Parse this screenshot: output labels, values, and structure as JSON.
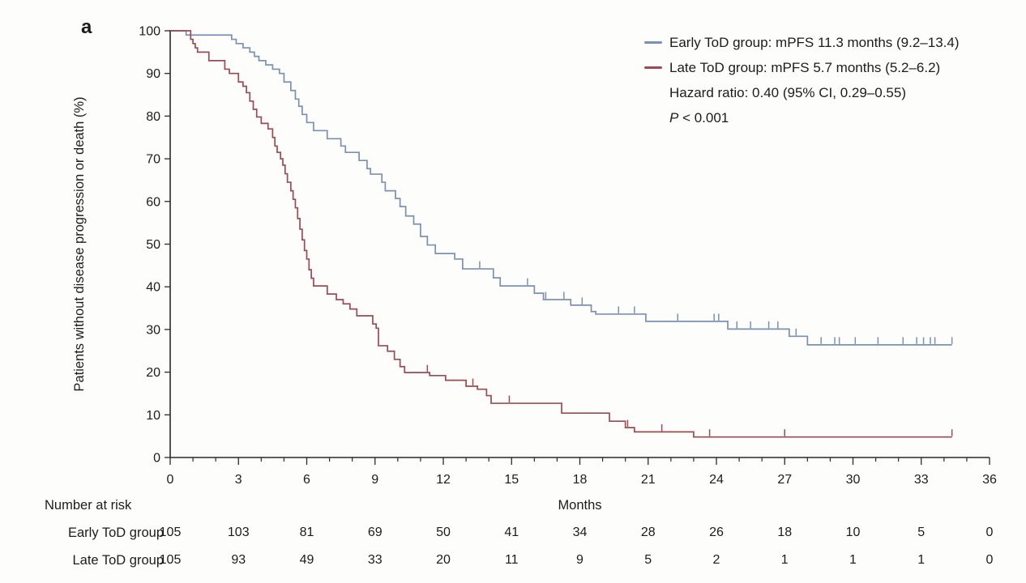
{
  "figure": {
    "panel_label": "a",
    "background": "#fdfdfb"
  },
  "chart_data": {
    "type": "line",
    "subtype": "kaplan-meier-step",
    "title": "",
    "xlabel": "Months",
    "ylabel": "Patients without disease progression or death (%)",
    "xlim": [
      0,
      36
    ],
    "ylim": [
      0,
      100
    ],
    "x_major_ticks": [
      0,
      3,
      6,
      9,
      12,
      15,
      18,
      21,
      24,
      27,
      30,
      33,
      36
    ],
    "x_minor_tick_every": 1,
    "y_ticks": [
      0,
      10,
      20,
      30,
      40,
      50,
      60,
      70,
      80,
      90,
      100
    ],
    "grid": "off",
    "legend_position": "top-right",
    "axis_color": "#2a2a2a",
    "series": [
      {
        "name": "Early ToD group",
        "legend_label": "Early ToD group: mPFS 11.3 months (9.2–13.4)",
        "color": "#7b91b3",
        "median_pfs_months": 11.3,
        "ci": "9.2-13.4",
        "end_time": 34.35,
        "steps": [
          [
            0,
            100
          ],
          [
            0.7,
            99
          ],
          [
            2.7,
            98
          ],
          [
            2.9,
            97
          ],
          [
            3.2,
            96
          ],
          [
            3.5,
            95
          ],
          [
            3.7,
            94
          ],
          [
            3.9,
            93
          ],
          [
            4.2,
            92
          ],
          [
            4.5,
            91
          ],
          [
            4.8,
            90
          ],
          [
            5.0,
            88
          ],
          [
            5.3,
            86
          ],
          [
            5.5,
            84
          ],
          [
            5.65,
            82.3
          ],
          [
            5.8,
            80.4
          ],
          [
            6.0,
            78.5
          ],
          [
            6.3,
            76.6
          ],
          [
            6.9,
            74.7
          ],
          [
            7.5,
            73.0
          ],
          [
            7.7,
            71.5
          ],
          [
            8.3,
            69.6
          ],
          [
            8.65,
            67.7
          ],
          [
            8.8,
            66.4
          ],
          [
            9.3,
            64.5
          ],
          [
            9.45,
            62.5
          ],
          [
            9.9,
            60.7
          ],
          [
            10.1,
            58.8
          ],
          [
            10.35,
            56.6
          ],
          [
            10.7,
            54.7
          ],
          [
            11.0,
            51.8
          ],
          [
            11.3,
            49.8
          ],
          [
            11.65,
            47.8
          ],
          [
            12.5,
            46.5
          ],
          [
            12.85,
            44.2
          ],
          [
            14.2,
            42.1
          ],
          [
            14.5,
            40.2
          ],
          [
            16.0,
            38.5
          ],
          [
            16.4,
            37.0
          ],
          [
            17.6,
            35.7
          ],
          [
            18.5,
            34.2
          ],
          [
            18.7,
            33.6
          ],
          [
            20.9,
            31.9
          ],
          [
            24.5,
            30.1
          ],
          [
            27.2,
            28.4
          ],
          [
            28.0,
            26.4
          ]
        ],
        "censor_times": [
          13.6,
          15.7,
          16.5,
          17.3,
          18.1,
          19.7,
          20.4,
          22.3,
          23.9,
          24.1,
          24.9,
          25.5,
          26.3,
          26.7,
          27.5,
          28.6,
          29.2,
          29.4,
          30.1,
          31.1,
          32.2,
          32.8,
          33.1,
          33.4,
          33.6,
          34.35
        ]
      },
      {
        "name": "Late ToD group",
        "legend_label": "Late ToD group: mPFS 5.7 months (5.2–6.2)",
        "color": "#9d4a52",
        "median_pfs_months": 5.7,
        "ci": "5.2-6.2",
        "end_time": 34.35,
        "steps": [
          [
            0,
            100
          ],
          [
            0.9,
            98
          ],
          [
            1.0,
            97
          ],
          [
            1.1,
            96
          ],
          [
            1.2,
            95
          ],
          [
            1.7,
            93
          ],
          [
            2.4,
            91
          ],
          [
            2.6,
            90
          ],
          [
            3.0,
            88
          ],
          [
            3.2,
            87
          ],
          [
            3.35,
            85.5
          ],
          [
            3.5,
            83.5
          ],
          [
            3.65,
            81.6
          ],
          [
            3.8,
            79.8
          ],
          [
            4.0,
            78.3
          ],
          [
            4.3,
            77
          ],
          [
            4.5,
            75
          ],
          [
            4.6,
            73
          ],
          [
            4.7,
            71.5
          ],
          [
            4.85,
            70
          ],
          [
            4.95,
            68.5
          ],
          [
            5.05,
            66.5
          ],
          [
            5.15,
            64.5
          ],
          [
            5.3,
            62.5
          ],
          [
            5.4,
            60.5
          ],
          [
            5.5,
            58.5
          ],
          [
            5.6,
            56
          ],
          [
            5.7,
            53.5
          ],
          [
            5.8,
            51
          ],
          [
            5.9,
            48.5
          ],
          [
            6.0,
            46.5
          ],
          [
            6.1,
            44
          ],
          [
            6.2,
            42
          ],
          [
            6.3,
            40.2
          ],
          [
            6.9,
            38.3
          ],
          [
            7.3,
            37.0
          ],
          [
            7.6,
            36.0
          ],
          [
            7.9,
            34.8
          ],
          [
            8.2,
            33.2
          ],
          [
            8.9,
            31.3
          ],
          [
            9.05,
            30.3
          ],
          [
            9.15,
            26.2
          ],
          [
            9.55,
            24.9
          ],
          [
            9.85,
            23.0
          ],
          [
            10.1,
            21.3
          ],
          [
            10.3,
            19.9
          ],
          [
            11.4,
            19.2
          ],
          [
            12.1,
            18.1
          ],
          [
            13.0,
            16.7
          ],
          [
            13.5,
            16.0
          ],
          [
            13.9,
            14.5
          ],
          [
            14.1,
            12.7
          ],
          [
            17.2,
            10.4
          ],
          [
            19.3,
            8.5
          ],
          [
            20.0,
            7.0
          ],
          [
            20.4,
            6.0
          ],
          [
            23.0,
            4.8
          ]
        ],
        "censor_times": [
          11.3,
          13.3,
          14.9,
          20.1,
          21.6,
          23.7,
          27.0,
          34.35
        ]
      }
    ],
    "stats": {
      "hazard_ratio_line": "Hazard ratio: 0.40 (95% CI, 0.29–0.55)",
      "p_symbol": "P",
      "p_rest": " < 0.001"
    }
  },
  "risk_table": {
    "title": "Number at risk",
    "time_points": [
      0,
      3,
      6,
      9,
      12,
      15,
      18,
      21,
      24,
      27,
      30,
      33,
      36
    ],
    "rows": [
      {
        "label": "Early ToD group",
        "counts": [
          105,
          103,
          81,
          69,
          50,
          41,
          34,
          28,
          26,
          18,
          10,
          5,
          0
        ]
      },
      {
        "label": "Late ToD group",
        "counts": [
          105,
          93,
          49,
          33,
          20,
          11,
          9,
          5,
          2,
          1,
          1,
          1,
          0
        ]
      }
    ]
  }
}
